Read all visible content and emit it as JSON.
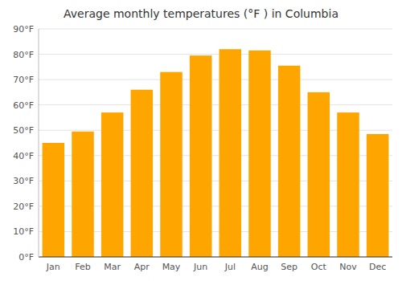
{
  "chart_data": {
    "type": "bar",
    "title": "Average monthly temperatures (°F ) in Columbia",
    "categories": [
      "Jan",
      "Feb",
      "Mar",
      "Apr",
      "May",
      "Jun",
      "Jul",
      "Aug",
      "Sep",
      "Oct",
      "Nov",
      "Dec"
    ],
    "values": [
      45,
      49.5,
      57,
      66,
      73,
      79.5,
      82,
      81.5,
      75.5,
      65,
      57,
      48.5
    ],
    "color": "#FFA500",
    "ylim": [
      0,
      90
    ],
    "yticks": [
      {
        "value": 0,
        "label": "0°F"
      },
      {
        "value": 10,
        "label": "10°F"
      },
      {
        "value": 20,
        "label": "20°F"
      },
      {
        "value": 30,
        "label": "30°F"
      },
      {
        "value": 40,
        "label": "40°F"
      },
      {
        "value": 50,
        "label": "50°F"
      },
      {
        "value": 60,
        "label": "60°F"
      },
      {
        "value": 70,
        "label": "70°F"
      },
      {
        "value": 80,
        "label": "80°F"
      },
      {
        "value": 90,
        "label": "90°F"
      }
    ],
    "grid": true
  }
}
